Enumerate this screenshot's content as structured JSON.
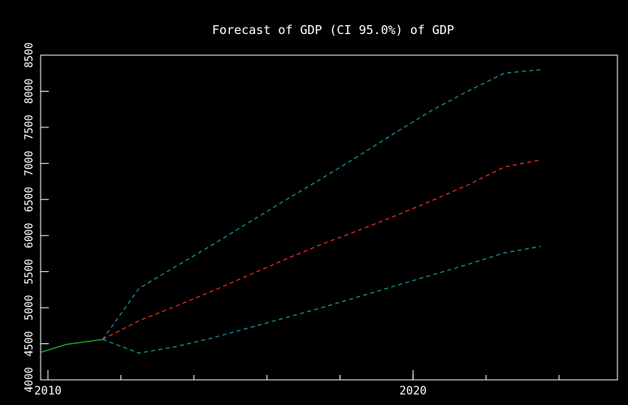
{
  "chart_data": {
    "type": "line",
    "title": "Forecast of GDP (CI 95.0%) of GDP",
    "xlabel": "",
    "ylabel": "",
    "xlim": [
      2009.8,
      2025.6
    ],
    "ylim": [
      4000,
      8500
    ],
    "x_ticks": [
      2010,
      2020
    ],
    "y_ticks": [
      4000,
      4500,
      5000,
      5500,
      6000,
      6500,
      7000,
      7500,
      8000,
      8500
    ],
    "grid": false,
    "legend": "none",
    "series": [
      {
        "role": "history",
        "color": "#1fbf2a",
        "dash": "solid",
        "points": [
          [
            2009.8,
            4380
          ],
          [
            2010.5,
            4490
          ],
          [
            2011.5,
            4560
          ]
        ]
      },
      {
        "role": "forecast",
        "color": "#ff2a2a",
        "dash": "dashed",
        "points": [
          [
            2011.5,
            4560
          ],
          [
            2012.5,
            4820
          ],
          [
            2013.5,
            5020
          ],
          [
            2014.5,
            5230
          ],
          [
            2015.5,
            5450
          ],
          [
            2016.5,
            5670
          ],
          [
            2017.5,
            5880
          ],
          [
            2018.5,
            6070
          ],
          [
            2019.5,
            6270
          ],
          [
            2020.5,
            6480
          ],
          [
            2021.5,
            6700
          ],
          [
            2022.5,
            6950
          ],
          [
            2023.5,
            7050
          ]
        ]
      },
      {
        "role": "upper-ci",
        "color": "#1a9aa0",
        "dash": "dashed",
        "points": [
          [
            2011.5,
            4560
          ],
          [
            2012.5,
            5270
          ],
          [
            2013.5,
            5570
          ],
          [
            2014.5,
            5870
          ],
          [
            2015.5,
            6180
          ],
          [
            2016.5,
            6490
          ],
          [
            2017.5,
            6790
          ],
          [
            2018.5,
            7100
          ],
          [
            2019.5,
            7420
          ],
          [
            2020.5,
            7730
          ],
          [
            2021.5,
            8000
          ],
          [
            2022.5,
            8250
          ],
          [
            2023.5,
            8300
          ]
        ]
      },
      {
        "role": "lower-ci",
        "color": "#1a9aa0",
        "dash": "dashed",
        "points": [
          [
            2011.5,
            4560
          ],
          [
            2012.5,
            4370
          ],
          [
            2013.5,
            4460
          ],
          [
            2014.5,
            4580
          ],
          [
            2015.5,
            4720
          ],
          [
            2016.5,
            4860
          ],
          [
            2017.5,
            5000
          ],
          [
            2018.5,
            5150
          ],
          [
            2019.5,
            5300
          ],
          [
            2020.5,
            5450
          ],
          [
            2021.5,
            5600
          ],
          [
            2022.5,
            5760
          ],
          [
            2023.5,
            5850
          ]
        ]
      }
    ],
    "colors": {
      "background": "#000000",
      "axis": "#ffffff",
      "text": "#ffffff"
    }
  }
}
